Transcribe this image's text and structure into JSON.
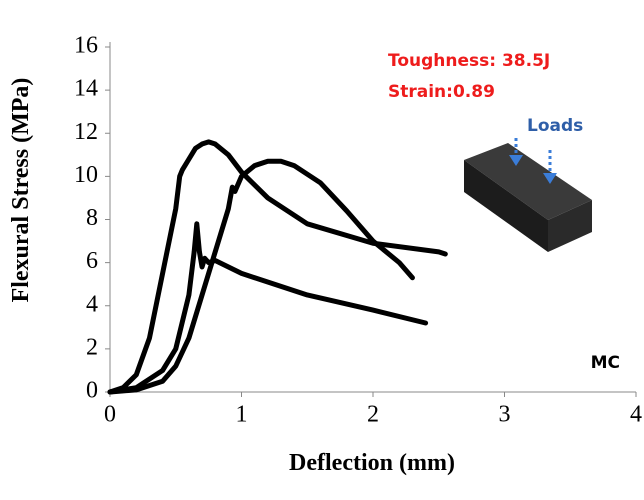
{
  "chart_data": {
    "type": "line",
    "x_label": "Deflection (mm)",
    "y_label": "Flexural Stress  (MPa)",
    "xlim": [
      0,
      4
    ],
    "xticks": [
      0,
      1,
      2,
      3,
      4
    ],
    "ylim": [
      0,
      16
    ],
    "yticks": [
      0,
      2,
      4,
      6,
      8,
      10,
      12,
      14,
      16
    ],
    "annotations": [
      "Toughness: 38.5J",
      "Strain:0.89",
      "Loads",
      "MC"
    ],
    "annotation_color": "#ee1c1c",
    "series": [
      {
        "color": "#000000",
        "x": [
          0,
          0.1,
          0.2,
          0.3,
          0.4,
          0.5,
          0.53,
          0.55,
          0.6,
          0.65,
          0.7,
          0.75,
          0.8,
          0.9,
          1.0,
          1.2,
          1.5,
          2.0,
          2.5,
          2.55
        ],
        "values": [
          0,
          0.2,
          0.8,
          2.5,
          5.5,
          8.5,
          10,
          10.3,
          10.8,
          11.3,
          11.5,
          11.6,
          11.5,
          11,
          10.2,
          9.0,
          7.8,
          6.9,
          6.5,
          6.4
        ]
      },
      {
        "color": "#000000",
        "x": [
          0,
          0.2,
          0.4,
          0.5,
          0.6,
          0.7,
          0.8,
          0.9,
          0.93,
          0.95,
          1.0,
          1.1,
          1.2,
          1.3,
          1.4,
          1.6,
          1.8,
          2.0,
          2.2,
          2.3
        ],
        "values": [
          0,
          0.1,
          0.5,
          1.2,
          2.5,
          4.5,
          6.5,
          8.5,
          9.5,
          9.3,
          10,
          10.5,
          10.7,
          10.7,
          10.5,
          9.7,
          8.4,
          7,
          6,
          5.3
        ]
      },
      {
        "color": "#000000",
        "x": [
          0,
          0.2,
          0.4,
          0.5,
          0.6,
          0.64,
          0.66,
          0.68,
          0.7,
          0.72,
          0.75,
          0.8,
          1.0,
          1.5,
          2.0,
          2.4
        ],
        "values": [
          0,
          0.2,
          1,
          2,
          4.5,
          6.5,
          7.8,
          6.5,
          5.8,
          6.2,
          6.0,
          6.1,
          5.5,
          4.5,
          3.8,
          3.2
        ]
      }
    ]
  }
}
